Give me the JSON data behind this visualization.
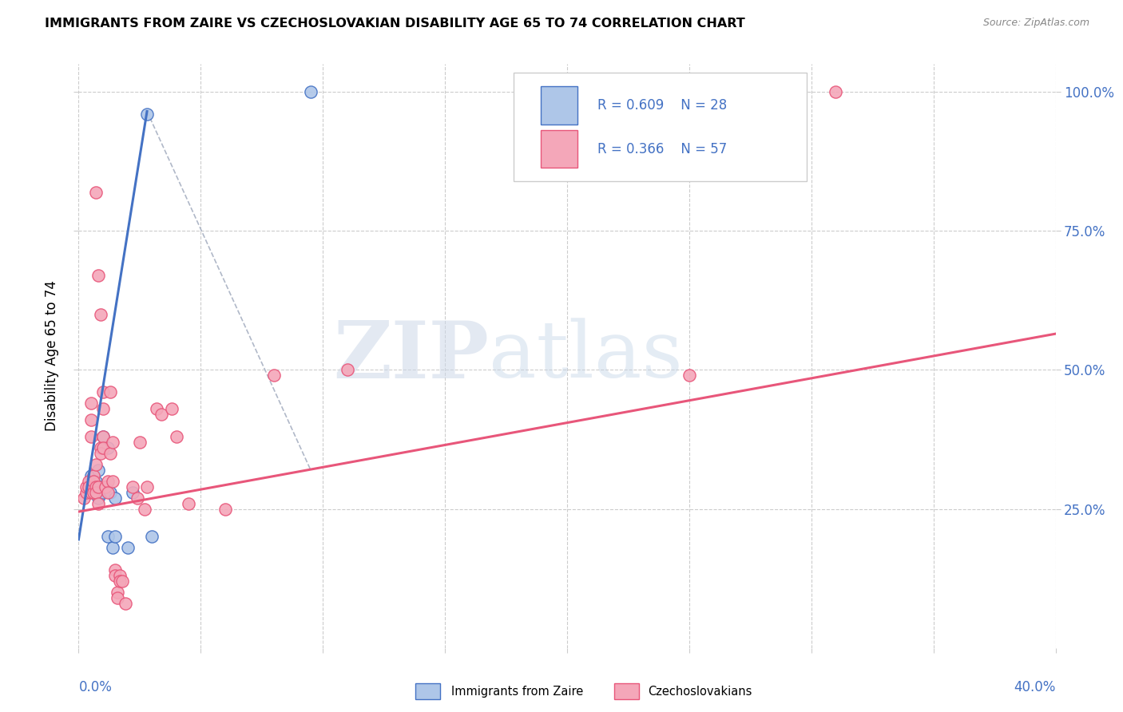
{
  "title": "IMMIGRANTS FROM ZAIRE VS CZECHOSLOVAKIAN DISABILITY AGE 65 TO 74 CORRELATION CHART",
  "source": "Source: ZipAtlas.com",
  "ylabel": "Disability Age 65 to 74",
  "xmin": 0.0,
  "xmax": 0.4,
  "ymin": 0.0,
  "ymax": 1.05,
  "legend_r1": "R = 0.609",
  "legend_n1": "N = 28",
  "legend_r2": "R = 0.366",
  "legend_n2": "N = 57",
  "color_zaire_fill": "#aec6e8",
  "color_czech_fill": "#f4a7b9",
  "color_zaire_edge": "#4472c4",
  "color_czech_edge": "#e8567a",
  "color_zaire_line": "#4472c4",
  "color_czech_line": "#e8567a",
  "color_grid": "#cccccc",
  "color_axis_label": "#4472c4",
  "zaire_points": [
    [
      0.005,
      0.29
    ],
    [
      0.005,
      0.29
    ],
    [
      0.005,
      0.29
    ],
    [
      0.005,
      0.31
    ],
    [
      0.006,
      0.3
    ],
    [
      0.006,
      0.29
    ],
    [
      0.007,
      0.29
    ],
    [
      0.007,
      0.28
    ],
    [
      0.007,
      0.3
    ],
    [
      0.008,
      0.28
    ],
    [
      0.008,
      0.27
    ],
    [
      0.008,
      0.32
    ],
    [
      0.009,
      0.29
    ],
    [
      0.01,
      0.28
    ],
    [
      0.01,
      0.36
    ],
    [
      0.01,
      0.38
    ],
    [
      0.011,
      0.29
    ],
    [
      0.012,
      0.36
    ],
    [
      0.012,
      0.2
    ],
    [
      0.013,
      0.28
    ],
    [
      0.014,
      0.18
    ],
    [
      0.015,
      0.2
    ],
    [
      0.015,
      0.27
    ],
    [
      0.02,
      0.18
    ],
    [
      0.022,
      0.28
    ],
    [
      0.028,
      0.96
    ],
    [
      0.03,
      0.2
    ],
    [
      0.095,
      1.0
    ]
  ],
  "czech_points": [
    [
      0.002,
      0.27
    ],
    [
      0.003,
      0.28
    ],
    [
      0.003,
      0.29
    ],
    [
      0.004,
      0.3
    ],
    [
      0.004,
      0.29
    ],
    [
      0.005,
      0.28
    ],
    [
      0.005,
      0.44
    ],
    [
      0.005,
      0.41
    ],
    [
      0.005,
      0.38
    ],
    [
      0.006,
      0.31
    ],
    [
      0.006,
      0.29
    ],
    [
      0.006,
      0.28
    ],
    [
      0.006,
      0.3
    ],
    [
      0.007,
      0.33
    ],
    [
      0.007,
      0.29
    ],
    [
      0.007,
      0.28
    ],
    [
      0.007,
      0.82
    ],
    [
      0.008,
      0.67
    ],
    [
      0.008,
      0.29
    ],
    [
      0.008,
      0.26
    ],
    [
      0.009,
      0.6
    ],
    [
      0.009,
      0.36
    ],
    [
      0.009,
      0.35
    ],
    [
      0.01,
      0.46
    ],
    [
      0.01,
      0.43
    ],
    [
      0.01,
      0.38
    ],
    [
      0.01,
      0.36
    ],
    [
      0.011,
      0.29
    ],
    [
      0.012,
      0.3
    ],
    [
      0.012,
      0.28
    ],
    [
      0.013,
      0.46
    ],
    [
      0.013,
      0.35
    ],
    [
      0.014,
      0.37
    ],
    [
      0.014,
      0.3
    ],
    [
      0.015,
      0.14
    ],
    [
      0.015,
      0.13
    ],
    [
      0.016,
      0.1
    ],
    [
      0.016,
      0.09
    ],
    [
      0.017,
      0.13
    ],
    [
      0.017,
      0.12
    ],
    [
      0.018,
      0.12
    ],
    [
      0.019,
      0.08
    ],
    [
      0.022,
      0.29
    ],
    [
      0.024,
      0.27
    ],
    [
      0.025,
      0.37
    ],
    [
      0.027,
      0.25
    ],
    [
      0.028,
      0.29
    ],
    [
      0.032,
      0.43
    ],
    [
      0.034,
      0.42
    ],
    [
      0.038,
      0.43
    ],
    [
      0.04,
      0.38
    ],
    [
      0.045,
      0.26
    ],
    [
      0.06,
      0.25
    ],
    [
      0.08,
      0.49
    ],
    [
      0.11,
      0.5
    ],
    [
      0.25,
      0.49
    ],
    [
      0.31,
      1.0
    ]
  ],
  "zaire_line_pts": [
    [
      0.0,
      0.195
    ],
    [
      0.028,
      0.965
    ]
  ],
  "czech_line_pts": [
    [
      0.0,
      0.245
    ],
    [
      0.4,
      0.565
    ]
  ],
  "diag_line_pts": [
    [
      0.028,
      0.965
    ],
    [
      0.095,
      0.32
    ]
  ],
  "yticks": [
    0.25,
    0.5,
    0.75,
    1.0
  ],
  "ytick_labels": [
    "25.0%",
    "50.0%",
    "75.0%",
    "100.0%"
  ],
  "xtick_n": 9
}
